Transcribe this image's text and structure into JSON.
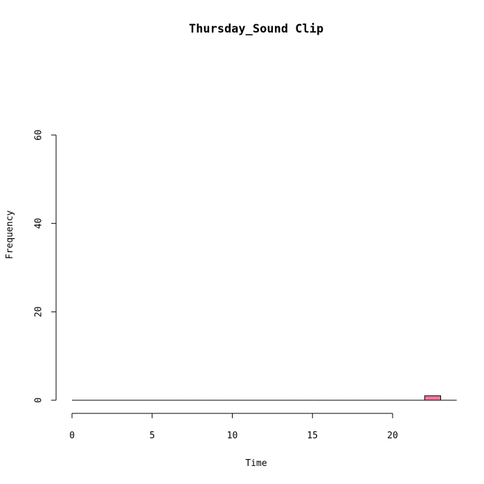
{
  "chart_data": {
    "type": "bar",
    "title": "Thursday_Sound Clip",
    "xlabel": "Time",
    "ylabel": "Frequency",
    "xlim": [
      0,
      24
    ],
    "ylim": [
      0,
      60
    ],
    "xticks": [
      0,
      5,
      10,
      15,
      20
    ],
    "yticks": [
      0,
      20,
      40,
      60
    ],
    "bins": [
      {
        "x0": 0,
        "x1": 1,
        "count": 0
      },
      {
        "x0": 1,
        "x1": 2,
        "count": 0
      },
      {
        "x0": 2,
        "x1": 3,
        "count": 0
      },
      {
        "x0": 3,
        "x1": 4,
        "count": 0
      },
      {
        "x0": 4,
        "x1": 5,
        "count": 0
      },
      {
        "x0": 5,
        "x1": 6,
        "count": 0
      },
      {
        "x0": 6,
        "x1": 7,
        "count": 0
      },
      {
        "x0": 7,
        "x1": 8,
        "count": 0
      },
      {
        "x0": 8,
        "x1": 9,
        "count": 0
      },
      {
        "x0": 9,
        "x1": 10,
        "count": 0
      },
      {
        "x0": 10,
        "x1": 11,
        "count": 0
      },
      {
        "x0": 11,
        "x1": 12,
        "count": 0
      },
      {
        "x0": 12,
        "x1": 13,
        "count": 0
      },
      {
        "x0": 13,
        "x1": 14,
        "count": 0
      },
      {
        "x0": 14,
        "x1": 15,
        "count": 0
      },
      {
        "x0": 15,
        "x1": 16,
        "count": 0
      },
      {
        "x0": 16,
        "x1": 17,
        "count": 0
      },
      {
        "x0": 17,
        "x1": 18,
        "count": 0
      },
      {
        "x0": 18,
        "x1": 19,
        "count": 0
      },
      {
        "x0": 19,
        "x1": 20,
        "count": 0
      },
      {
        "x0": 20,
        "x1": 21,
        "count": 0
      },
      {
        "x0": 21,
        "x1": 22,
        "count": 0
      },
      {
        "x0": 22,
        "x1": 23,
        "count": 1
      },
      {
        "x0": 23,
        "x1": 24,
        "count": 0
      }
    ],
    "bar_color": "#f0799a",
    "grid": false,
    "legend": "none"
  }
}
